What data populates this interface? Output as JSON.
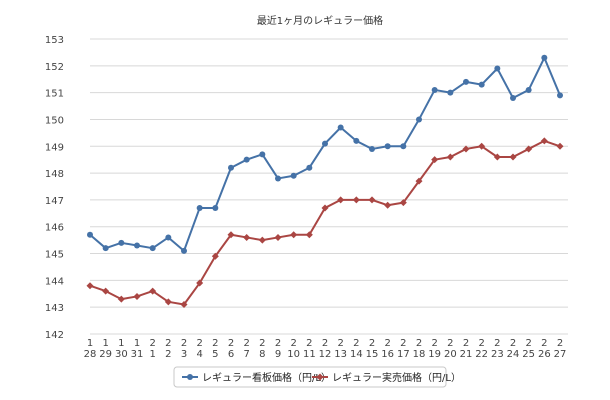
{
  "chart_data": {
    "type": "line",
    "title": "最近1ヶ月のレギュラー価格",
    "xlabel": "",
    "ylabel": "",
    "ylim": [
      142,
      153
    ],
    "yticks": [
      142,
      143,
      144,
      145,
      146,
      147,
      148,
      149,
      150,
      151,
      152,
      153
    ],
    "grid": true,
    "legend_position": "bottom",
    "x_month": [
      "1",
      "1",
      "1",
      "1",
      "2",
      "2",
      "2",
      "2",
      "2",
      "2",
      "2",
      "2",
      "2",
      "2",
      "2",
      "2",
      "2",
      "2",
      "2",
      "2",
      "2",
      "2",
      "2",
      "2",
      "2",
      "2",
      "2",
      "2",
      "2",
      "2",
      "2"
    ],
    "x_day": [
      "28",
      "29",
      "30",
      "31",
      "1",
      "2",
      "3",
      "4",
      "5",
      "6",
      "7",
      "8",
      "9",
      "10",
      "11",
      "12",
      "13",
      "14",
      "15",
      "16",
      "17",
      "18",
      "19",
      "20",
      "21",
      "22",
      "23",
      "24",
      "25",
      "26",
      "27"
    ],
    "series": [
      {
        "name": "レギュラー看板価格（円/L）",
        "color": "#4572a7",
        "values": [
          145.7,
          145.2,
          145.4,
          145.3,
          145.2,
          145.6,
          145.1,
          146.7,
          146.7,
          148.2,
          148.5,
          148.7,
          147.8,
          147.9,
          148.2,
          149.1,
          149.7,
          149.2,
          148.9,
          149.0,
          149.0,
          150.0,
          151.1,
          151.0,
          151.4,
          151.3,
          151.9,
          150.8,
          151.1,
          152.3,
          150.9
        ]
      },
      {
        "name": "レギュラー実売価格（円/L）",
        "color": "#aa4643",
        "values": [
          143.8,
          143.6,
          143.3,
          143.4,
          143.6,
          143.2,
          143.1,
          143.9,
          144.9,
          145.7,
          145.6,
          145.5,
          145.6,
          145.7,
          145.7,
          146.7,
          147.0,
          147.0,
          147.0,
          146.8,
          146.9,
          147.7,
          148.5,
          148.6,
          148.9,
          149.0,
          148.6,
          148.6,
          148.9,
          149.2,
          149.0
        ]
      }
    ]
  }
}
